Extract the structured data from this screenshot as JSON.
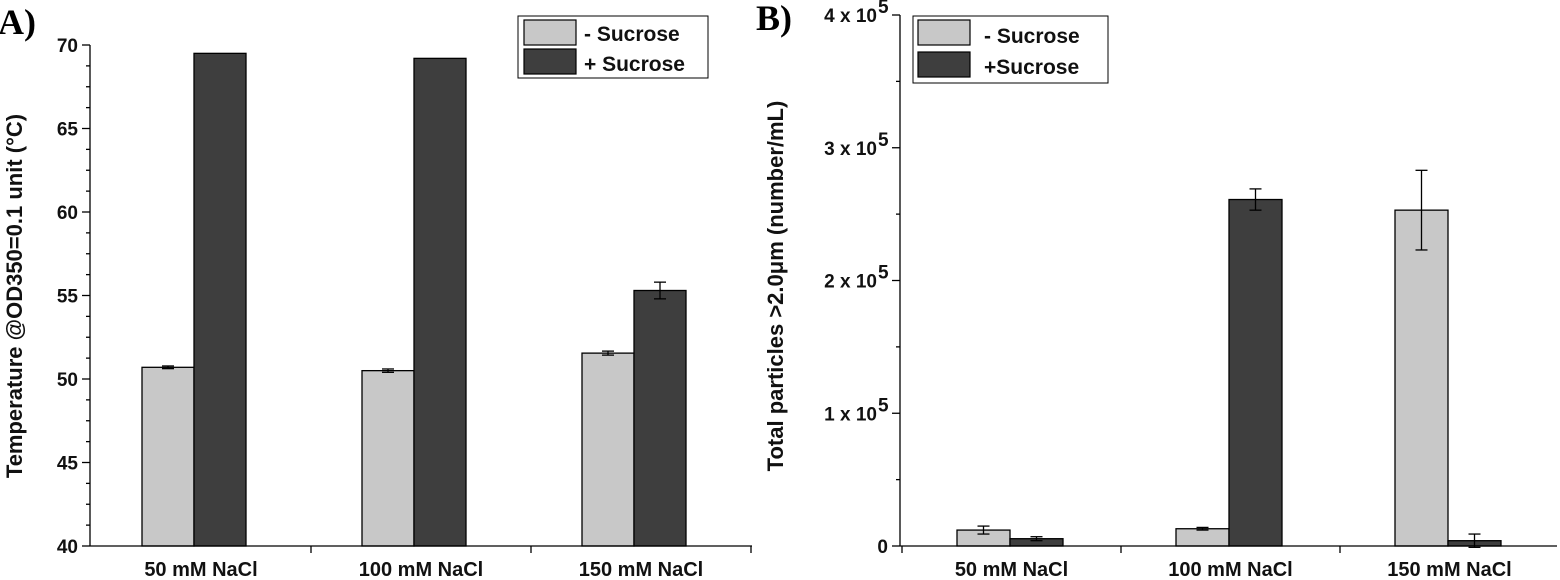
{
  "figure": {
    "colors": {
      "minus_sucrose": "#c8c8c8",
      "plus_sucrose": "#3e3e3e"
    }
  },
  "chart_data": [
    {
      "type": "bar",
      "panel_label": "A)",
      "categories": [
        "50 mM NaCl",
        "100 mM NaCl",
        "150 mM NaCl"
      ],
      "series": [
        {
          "name": "- Sucrose",
          "values": [
            50.7,
            50.5,
            51.55
          ],
          "errors": [
            0.08,
            0.1,
            0.12
          ]
        },
        {
          "name": "+ Sucrose",
          "values": [
            69.5,
            69.2,
            55.3
          ],
          "errors": [
            0,
            0,
            0.5
          ]
        }
      ],
      "ylabel": "Temperature @OD350=0.1 unit (°C)",
      "ylim": [
        40,
        70
      ],
      "yticks": [
        40,
        45,
        50,
        55,
        60,
        65,
        70
      ],
      "ytick_labels": [
        "40",
        "45",
        "50",
        "55",
        "60",
        "65",
        "70"
      ],
      "legend": "top-right",
      "grid": false
    },
    {
      "type": "bar",
      "panel_label": "B)",
      "categories": [
        "50 mM NaCl",
        "100 mM NaCl",
        "150 mM NaCl"
      ],
      "series": [
        {
          "name": "- Sucrose",
          "values": [
            12000,
            13000,
            253000
          ],
          "errors": [
            3000,
            1000,
            30000
          ]
        },
        {
          "name": "+Sucrose",
          "values": [
            5500,
            261000,
            4000
          ],
          "errors": [
            1500,
            8000,
            5000
          ]
        }
      ],
      "ylabel": "Total particles >2.0μm (number/mL)",
      "ylim": [
        0,
        400000
      ],
      "yticks": [
        0,
        100000,
        200000,
        300000,
        400000
      ],
      "ytick_labels": [
        "0",
        "1 x 10",
        "2 x 10",
        "3 x 10",
        "4 x 10"
      ],
      "ytick_exponent": "5",
      "legend": "top-left",
      "grid": false
    }
  ]
}
